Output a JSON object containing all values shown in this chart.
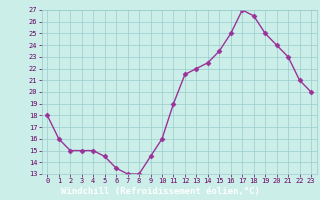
{
  "x": [
    0,
    1,
    2,
    3,
    4,
    5,
    6,
    7,
    8,
    9,
    10,
    11,
    12,
    13,
    14,
    15,
    16,
    17,
    18,
    19,
    20,
    21,
    22,
    23
  ],
  "y": [
    18,
    16,
    15,
    15,
    15,
    14.5,
    13.5,
    13,
    13,
    14.5,
    16,
    19,
    21.5,
    22,
    22.5,
    23.5,
    25,
    27,
    26.5,
    25,
    24,
    23,
    21,
    20
  ],
  "line_color": "#993399",
  "marker": "D",
  "marker_size": 2.5,
  "bg_color": "#cceee8",
  "grid_color": "#99cccc",
  "xlabel": "Windchill (Refroidissement éolien,°C)",
  "xlabel_color": "#ffffff",
  "xlabel_bg": "#884499",
  "ylim": [
    13,
    27
  ],
  "xlim": [
    -0.5,
    23.5
  ],
  "yticks": [
    13,
    14,
    15,
    16,
    17,
    18,
    19,
    20,
    21,
    22,
    23,
    24,
    25,
    26,
    27
  ],
  "xticks": [
    0,
    1,
    2,
    3,
    4,
    5,
    6,
    7,
    8,
    9,
    10,
    11,
    12,
    13,
    14,
    15,
    16,
    17,
    18,
    19,
    20,
    21,
    22,
    23
  ],
  "tick_label_color": "#660066",
  "tick_label_fontsize": 5,
  "xlabel_fontsize": 6.5,
  "line_width": 1.0
}
